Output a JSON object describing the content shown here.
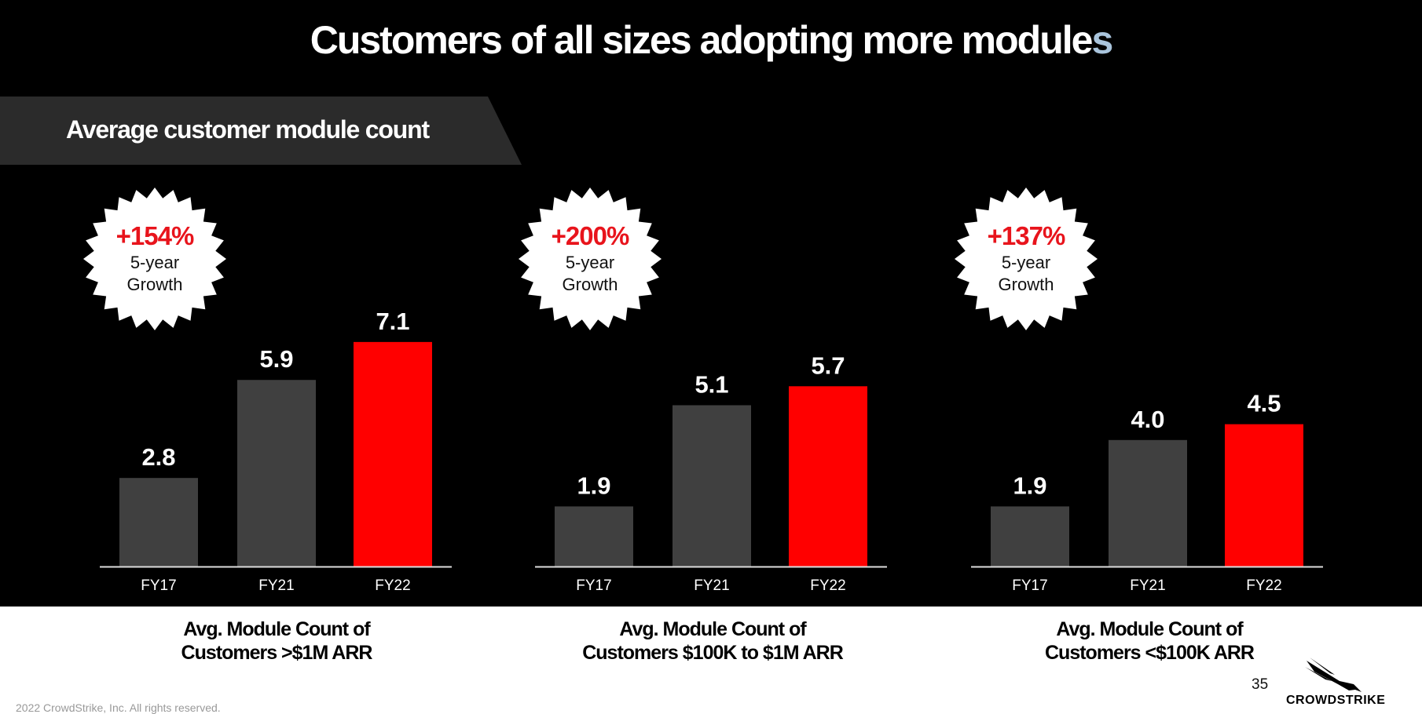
{
  "title_main": "Customers of all sizes adopting more module",
  "title_last": "s",
  "banner": "Average customer module count",
  "colors": {
    "gray_bar": "#404040",
    "red_bar": "#ff0000",
    "accent_red": "#e8141c",
    "title_accent": "#a9c4dc"
  },
  "chart_data": [
    {
      "type": "bar",
      "categories": [
        "FY17",
        "FY21",
        "FY22"
      ],
      "values": [
        2.8,
        5.9,
        7.1
      ],
      "labels": [
        "2.8",
        "5.9",
        "7.1"
      ],
      "badge": {
        "value": "+154%",
        "line1": "5-year",
        "line2": "Growth"
      },
      "title_line1": "Avg. Module Count of",
      "title_line2": "Customers >$1M ARR"
    },
    {
      "type": "bar",
      "categories": [
        "FY17",
        "FY21",
        "FY22"
      ],
      "values": [
        1.9,
        5.1,
        5.7
      ],
      "labels": [
        "1.9",
        "5.1",
        "5.7"
      ],
      "badge": {
        "value": "+200%",
        "line1": "5-year",
        "line2": "Growth"
      },
      "title_line1": "Avg. Module Count of",
      "title_line2": "Customers $100K to $1M ARR"
    },
    {
      "type": "bar",
      "categories": [
        "FY17",
        "FY21",
        "FY22"
      ],
      "values": [
        1.9,
        4.0,
        4.5
      ],
      "labels": [
        "1.9",
        "4.0",
        "4.5"
      ],
      "badge": {
        "value": "+137%",
        "line1": "5-year",
        "line2": "Growth"
      },
      "title_line1": "Avg. Module Count of",
      "title_line2": "Customers <$100K ARR"
    }
  ],
  "page_number": "35",
  "logo_text": "CROWDSTRIKE",
  "copyright": "2022 CrowdStrike, Inc. All rights reserved."
}
